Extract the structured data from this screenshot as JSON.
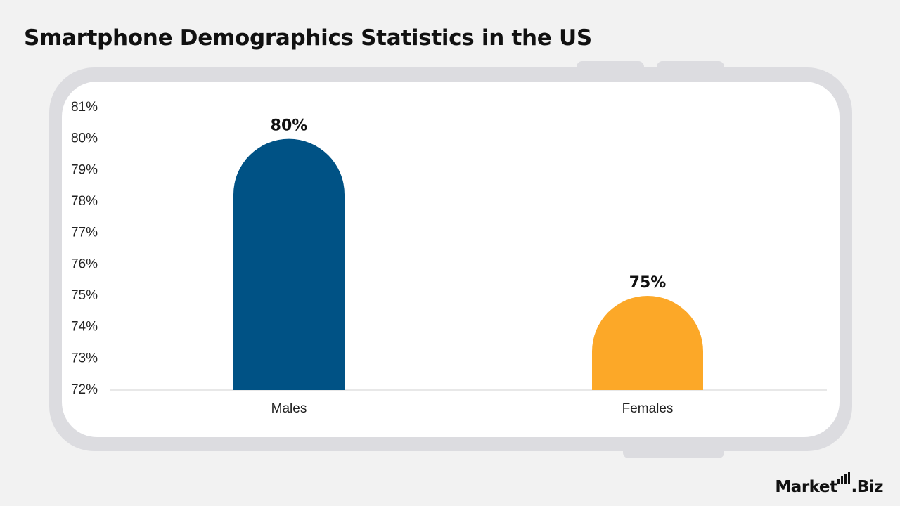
{
  "title": "Smartphone Demographics Statistics in the US",
  "brand": {
    "part1": "Market",
    "part2": ".Biz"
  },
  "chart_data": {
    "type": "bar",
    "title": "Smartphone Demographics Statistics in the US",
    "categories": [
      "Males",
      "Females"
    ],
    "values": [
      80,
      75
    ],
    "value_labels": [
      "80%",
      "75%"
    ],
    "colors": [
      "#005285",
      "#fca828"
    ],
    "xlabel": "",
    "ylabel": "",
    "ylim": [
      72,
      81
    ],
    "yticks": [
      "72%",
      "73%",
      "74%",
      "75%",
      "76%",
      "77%",
      "78%",
      "79%",
      "80%",
      "81%"
    ],
    "grid": false,
    "legend": "none"
  }
}
